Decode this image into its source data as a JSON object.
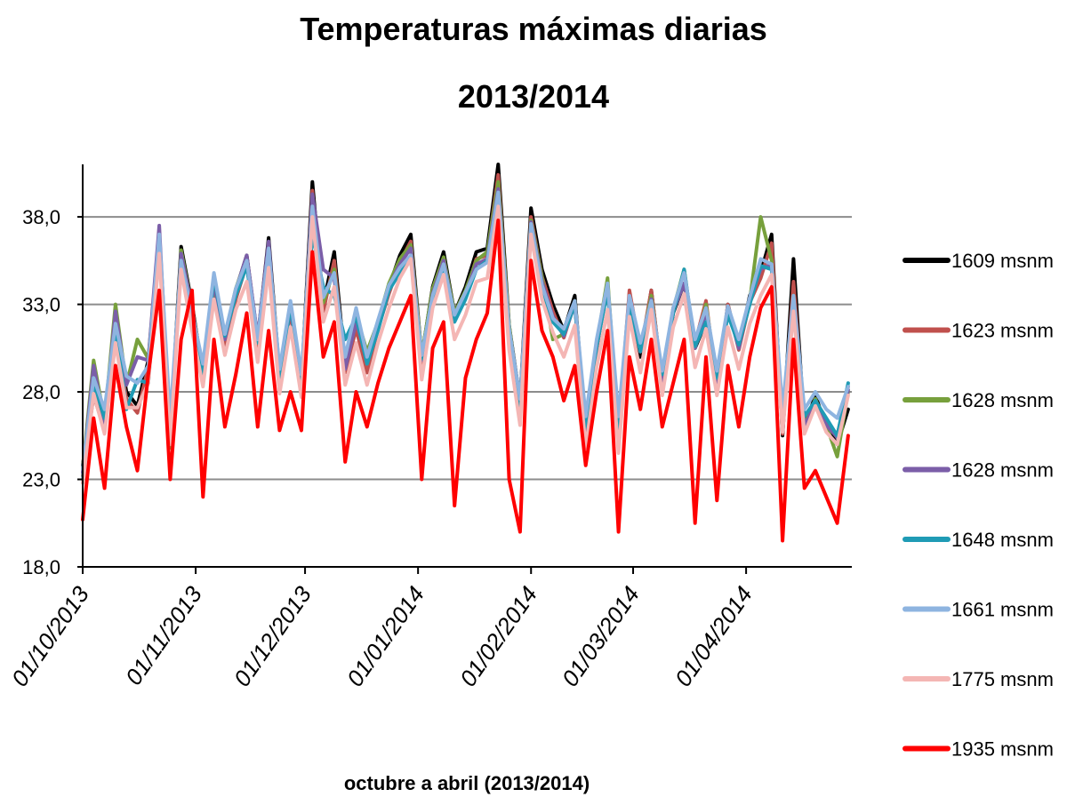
{
  "chart_data": {
    "type": "line",
    "title": "Temperaturas máximas diarias",
    "subtitle": "2013/2014",
    "xlabel": "octubre a abril (2013/2014)",
    "ylabel": "",
    "x_range": [
      "01/10/2013",
      "30/04/2014"
    ],
    "ylim": [
      18.0,
      41.0
    ],
    "y_ticks": [
      "18,0",
      "23,0",
      "28,0",
      "33,0",
      "38,0"
    ],
    "y_tick_values": [
      18,
      23,
      28,
      33,
      38
    ],
    "x_ticks": [
      "01/10/2013",
      "01/11/2013",
      "01/12/2013",
      "01/01/2014",
      "01/02/2014",
      "01/03/2014",
      "01/04/2014"
    ],
    "grid": true,
    "legend_position": "right",
    "sampling": "approximately every 3 days",
    "x": [
      "01/10/2013",
      "04/10/2013",
      "07/10/2013",
      "10/10/2013",
      "13/10/2013",
      "16/10/2013",
      "19/10/2013",
      "22/10/2013",
      "25/10/2013",
      "28/10/2013",
      "31/10/2013",
      "03/11/2013",
      "06/11/2013",
      "09/11/2013",
      "12/11/2013",
      "15/11/2013",
      "18/11/2013",
      "21/11/2013",
      "24/11/2013",
      "27/11/2013",
      "30/11/2013",
      "03/12/2013",
      "06/12/2013",
      "09/12/2013",
      "12/12/2013",
      "15/12/2013",
      "18/12/2013",
      "21/12/2013",
      "24/12/2013",
      "27/12/2013",
      "30/12/2013",
      "02/01/2014",
      "05/01/2014",
      "08/01/2014",
      "11/01/2014",
      "14/01/2014",
      "17/01/2014",
      "20/01/2014",
      "23/01/2014",
      "26/01/2014",
      "29/01/2014",
      "01/02/2014",
      "04/02/2014",
      "07/02/2014",
      "10/02/2014",
      "13/02/2014",
      "16/02/2014",
      "19/02/2014",
      "22/02/2014",
      "25/02/2014",
      "28/02/2014",
      "03/03/2014",
      "06/03/2014",
      "09/03/2014",
      "12/03/2014",
      "15/03/2014",
      "18/03/2014",
      "21/03/2014",
      "24/03/2014",
      "27/03/2014",
      "30/03/2014",
      "02/04/2014",
      "05/04/2014",
      "08/04/2014",
      "11/04/2014",
      "14/04/2014",
      "17/04/2014",
      "20/04/2014",
      "23/04/2014",
      "26/04/2014",
      "29/04/2014"
    ],
    "series": [
      {
        "name": "1609 msnm",
        "color": "#000000",
        "values": [
          23.8,
          28.2,
          26.0,
          31.5,
          28.0,
          27.2,
          29.8,
          36.8,
          25.5,
          36.3,
          33.0,
          29.0,
          34.5,
          31.0,
          33.8,
          35.8,
          31.0,
          36.8,
          29.0,
          33.0,
          28.5,
          40.0,
          33.0,
          36.0,
          29.5,
          32.0,
          29.5,
          32.0,
          34.0,
          35.8,
          37.0,
          30.0,
          34.0,
          36.0,
          32.5,
          34.0,
          36.0,
          36.2,
          41.0,
          31.8,
          27.5,
          38.5,
          35.0,
          33.0,
          31.5,
          33.5,
          25.8,
          30.5,
          34.2,
          25.0,
          33.0,
          30.0,
          33.8,
          28.5,
          32.5,
          34.2,
          30.5,
          32.0,
          28.0,
          33.0,
          30.5,
          33.5,
          34.8,
          37.0,
          25.5,
          35.6,
          26.0,
          27.8,
          26.0,
          25.0,
          27.0
        ]
      },
      {
        "name": "1623 msnm",
        "color": "#c0504d",
        "values": [
          23.2,
          27.8,
          25.8,
          31.0,
          27.6,
          26.8,
          29.4,
          36.3,
          25.0,
          35.8,
          32.6,
          28.6,
          34.0,
          30.6,
          33.3,
          35.3,
          30.6,
          36.3,
          28.6,
          32.6,
          28.1,
          39.5,
          32.6,
          35.5,
          29.1,
          31.6,
          29.1,
          31.6,
          33.6,
          35.4,
          36.6,
          29.6,
          33.6,
          35.6,
          32.1,
          33.6,
          35.6,
          35.8,
          40.4,
          31.4,
          27.1,
          38.0,
          34.6,
          32.6,
          31.1,
          33.1,
          25.8,
          30.5,
          34.0,
          25.8,
          33.8,
          30.3,
          33.8,
          28.6,
          32.8,
          34.2,
          30.8,
          33.2,
          28.3,
          33.0,
          30.4,
          33.1,
          34.5,
          36.5,
          25.6,
          34.3,
          26.2,
          27.2,
          26.2,
          25.5,
          28.3
        ]
      },
      {
        "name": "1628 msnm",
        "color": "#77a03c",
        "values": [
          23.6,
          29.8,
          26.4,
          33.0,
          28.4,
          31.0,
          29.9,
          36.9,
          24.8,
          36.1,
          32.8,
          29.2,
          34.0,
          31.2,
          33.9,
          35.7,
          30.8,
          36.0,
          28.8,
          32.8,
          28.5,
          39.2,
          33.1,
          35.0,
          29.5,
          32.4,
          30.3,
          32.0,
          34.2,
          35.6,
          36.4,
          30.1,
          33.9,
          35.7,
          32.5,
          33.8,
          35.5,
          36.0,
          40.0,
          31.8,
          27.2,
          37.8,
          34.6,
          31.0,
          31.3,
          33.2,
          25.8,
          30.7,
          34.5,
          25.6,
          33.0,
          30.4,
          33.5,
          28.7,
          32.7,
          35.0,
          30.5,
          33.0,
          28.7,
          32.6,
          30.6,
          33.2,
          38.0,
          35.5,
          25.9,
          33.5,
          26.0,
          27.6,
          26.1,
          24.3,
          28.0
        ]
      },
      {
        "name": "1628 msnm",
        "color": "#7b5ea8",
        "values": [
          23.4,
          29.5,
          26.2,
          32.6,
          28.4,
          30.0,
          29.8,
          37.5,
          25.2,
          35.9,
          32.8,
          29.0,
          34.2,
          31.0,
          33.8,
          35.8,
          31.1,
          36.6,
          28.7,
          32.8,
          28.4,
          39.3,
          35.0,
          34.5,
          29.3,
          32.0,
          29.9,
          31.8,
          34.0,
          35.3,
          36.2,
          29.8,
          33.6,
          35.5,
          32.3,
          33.6,
          35.3,
          35.6,
          39.6,
          31.5,
          27.0,
          37.7,
          34.3,
          32.3,
          31.2,
          33.0,
          25.8,
          30.6,
          34.0,
          25.5,
          33.0,
          30.3,
          33.3,
          28.6,
          32.6,
          34.2,
          30.5,
          32.6,
          28.4,
          32.7,
          30.5,
          33.3,
          35.0,
          35.3,
          25.8,
          33.3,
          26.0,
          27.4,
          26.1,
          25.4,
          28.1
        ]
      },
      {
        "name": "1648 msnm",
        "color": "#1f9bb5",
        "values": [
          23.0,
          28.5,
          26.5,
          31.7,
          27.0,
          28.7,
          28.5,
          36.5,
          26.0,
          35.2,
          32.3,
          28.9,
          34.6,
          31.2,
          33.5,
          35.2,
          30.8,
          36.0,
          28.8,
          32.9,
          28.7,
          37.0,
          34.0,
          33.5,
          31.0,
          32.3,
          29.6,
          31.5,
          33.8,
          34.8,
          35.6,
          29.9,
          33.4,
          35.2,
          32.0,
          33.3,
          35.0,
          35.5,
          39.0,
          31.2,
          27.1,
          37.5,
          34.0,
          32.0,
          31.3,
          33.0,
          26.0,
          30.6,
          33.8,
          26.0,
          33.0,
          30.3,
          33.0,
          29.0,
          32.5,
          35.0,
          30.6,
          32.0,
          28.8,
          32.4,
          30.7,
          33.0,
          35.2,
          35.0,
          26.8,
          33.0,
          26.6,
          27.5,
          26.5,
          25.5,
          28.5
        ]
      },
      {
        "name": "1661 msnm",
        "color": "#8eb4e0",
        "values": [
          23.6,
          28.8,
          27.0,
          31.9,
          28.9,
          28.5,
          29.5,
          37.0,
          26.5,
          35.5,
          32.5,
          29.6,
          34.8,
          31.3,
          33.9,
          35.5,
          31.0,
          36.2,
          29.3,
          33.2,
          29.0,
          38.6,
          33.4,
          34.8,
          30.0,
          32.8,
          30.0,
          32.1,
          34.1,
          35.1,
          35.8,
          30.1,
          33.5,
          35.3,
          32.4,
          33.7,
          35.0,
          35.4,
          39.4,
          31.6,
          27.6,
          37.6,
          34.1,
          32.2,
          31.6,
          33.2,
          26.6,
          31.0,
          34.2,
          26.6,
          33.5,
          30.8,
          33.2,
          29.2,
          32.8,
          34.8,
          31.0,
          32.8,
          29.2,
          32.9,
          31.0,
          33.4,
          35.6,
          35.3,
          27.0,
          33.5,
          27.0,
          28.0,
          27.0,
          26.5,
          28.3
        ]
      },
      {
        "name": "1775 msnm",
        "color": "#f4b6b4",
        "values": [
          22.8,
          27.9,
          25.6,
          30.8,
          27.1,
          27.1,
          28.5,
          35.9,
          25.0,
          35.0,
          31.5,
          28.3,
          33.3,
          30.1,
          32.7,
          34.3,
          29.7,
          35.1,
          27.9,
          31.7,
          27.7,
          38.0,
          32.0,
          34.0,
          28.4,
          30.8,
          28.4,
          30.8,
          32.8,
          34.5,
          35.6,
          28.7,
          32.8,
          34.7,
          31.0,
          32.4,
          34.3,
          34.5,
          38.6,
          30.4,
          26.1,
          37.0,
          33.3,
          31.4,
          30.0,
          31.8,
          24.8,
          29.4,
          32.7,
          24.5,
          32.3,
          29.1,
          32.7,
          27.8,
          31.7,
          33.6,
          29.4,
          31.6,
          27.8,
          31.7,
          29.3,
          31.9,
          33.5,
          34.7,
          25.7,
          32.6,
          25.6,
          27.2,
          25.7,
          25.0,
          27.8
        ]
      },
      {
        "name": "1935 msnm",
        "color": "#ff0000",
        "values": [
          20.7,
          26.5,
          22.5,
          29.5,
          26.0,
          23.5,
          29.0,
          33.8,
          23.0,
          31.0,
          33.8,
          22.0,
          31.0,
          26.0,
          29.0,
          32.5,
          26.0,
          31.5,
          25.8,
          28.0,
          25.8,
          36.0,
          30.0,
          32.0,
          24.0,
          28.0,
          26.0,
          28.5,
          30.5,
          32.0,
          33.5,
          23.0,
          30.5,
          32.0,
          21.5,
          28.8,
          31.0,
          32.5,
          37.8,
          23.0,
          20.0,
          35.5,
          31.5,
          30.0,
          27.5,
          29.5,
          23.8,
          28.0,
          31.5,
          20.0,
          30.0,
          27.0,
          31.0,
          26.0,
          28.5,
          31.0,
          20.5,
          30.0,
          21.8,
          29.5,
          26.0,
          30.0,
          32.8,
          34.0,
          19.5,
          31.0,
          22.5,
          23.5,
          22.0,
          20.5,
          25.5
        ]
      }
    ]
  },
  "legend": {
    "items": [
      {
        "label": "1609 msnm",
        "color": "#000000"
      },
      {
        "label": "1623 msnm",
        "color": "#c0504d"
      },
      {
        "label": "1628 msnm",
        "color": "#77a03c"
      },
      {
        "label": "1628 msnm",
        "color": "#7b5ea8"
      },
      {
        "label": "1648 msnm",
        "color": "#1f9bb5"
      },
      {
        "label": "1661 msnm",
        "color": "#8eb4e0"
      },
      {
        "label": "1775 msnm",
        "color": "#f4b6b4"
      },
      {
        "label": "1935 msnm",
        "color": "#ff0000"
      }
    ]
  },
  "colors": {
    "gridline": "#8c8c8c",
    "axis": "#000000",
    "background": "#ffffff"
  }
}
